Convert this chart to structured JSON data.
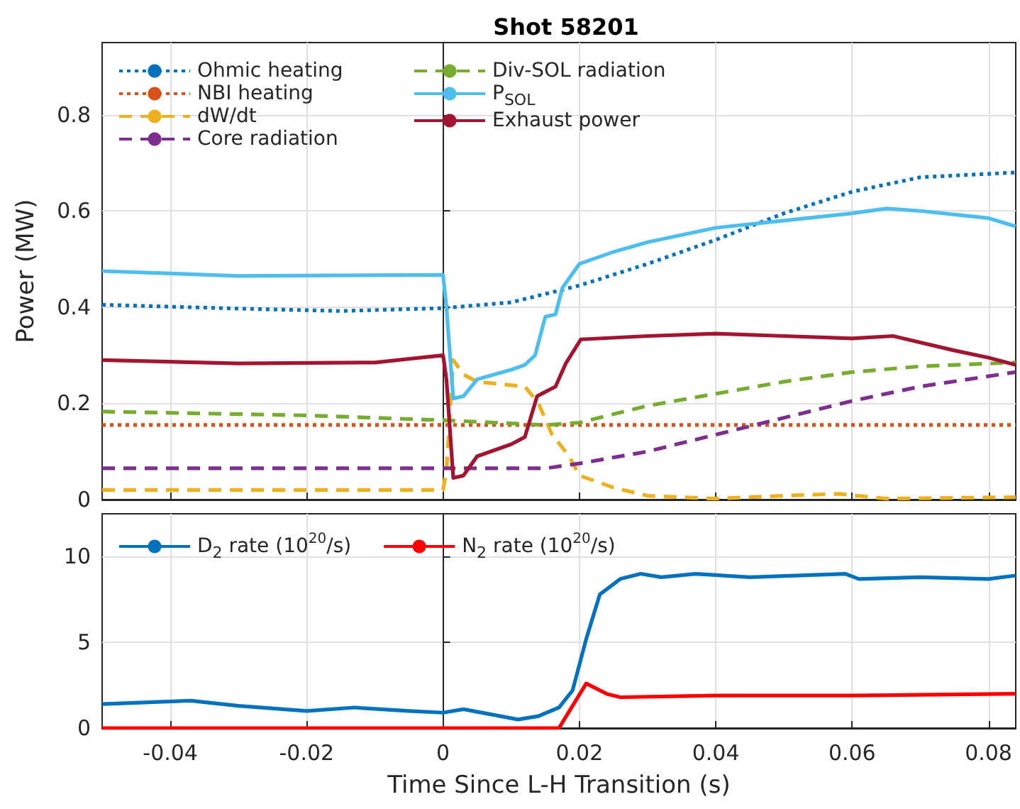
{
  "chart_data": [
    {
      "type": "line",
      "title": "Shot 58201",
      "ylabel": "Power (MW)",
      "xlim": [
        -0.05,
        0.084
      ],
      "xticks": [
        -0.04,
        -0.02,
        0,
        0.02,
        0.04,
        0.06,
        0.08
      ],
      "ylim": [
        0,
        0.95
      ],
      "yticks": [
        0,
        0.2,
        0.4,
        0.6,
        0.8
      ],
      "tick_labels": "y",
      "grid": true,
      "legend": "top left",
      "series": [
        {
          "name": "Ohmic heating",
          "color": "#0072bd",
          "line_style": "dotted",
          "x": [
            -0.05,
            -0.03,
            -0.015,
            0,
            0.01,
            0.02,
            0.03,
            0.04,
            0.05,
            0.06,
            0.07,
            0.084
          ],
          "values": [
            0.405,
            0.397,
            0.392,
            0.398,
            0.41,
            0.445,
            0.49,
            0.54,
            0.595,
            0.64,
            0.67,
            0.68
          ]
        },
        {
          "name": "NBI heating",
          "color": "#d95319",
          "line_style": "dotted",
          "x": [
            -0.05,
            0.084
          ],
          "values": [
            0.155,
            0.155
          ]
        },
        {
          "name": "dW/dt",
          "color": "#edb120",
          "line_style": "dashed",
          "x": [
            -0.05,
            0,
            0.0005,
            0.0015,
            0.003,
            0.005,
            0.012,
            0.014,
            0.016,
            0.0185,
            0.02,
            0.025,
            0.03,
            0.04,
            0.05,
            0.058,
            0.065,
            0.084
          ],
          "values": [
            0.02,
            0.02,
            0.06,
            0.29,
            0.26,
            0.245,
            0.235,
            0.2,
            0.135,
            0.09,
            0.05,
            0.025,
            0.008,
            0.002,
            0.008,
            0.012,
            0.002,
            0.005
          ]
        },
        {
          "name": "Core radiation",
          "color": "#7e2f8e",
          "line_style": "dashed",
          "x": [
            -0.05,
            0.015,
            0.02,
            0.03,
            0.04,
            0.05,
            0.06,
            0.07,
            0.084
          ],
          "values": [
            0.065,
            0.065,
            0.075,
            0.1,
            0.135,
            0.17,
            0.205,
            0.235,
            0.265
          ]
        },
        {
          "name": "Div-SOL radiation",
          "color": "#77ac30",
          "line_style": "dashed",
          "x": [
            -0.05,
            -0.02,
            0,
            0.015,
            0.02,
            0.03,
            0.04,
            0.05,
            0.06,
            0.07,
            0.084
          ],
          "values": [
            0.183,
            0.175,
            0.165,
            0.155,
            0.16,
            0.195,
            0.22,
            0.245,
            0.265,
            0.277,
            0.285
          ]
        },
        {
          "name": "P$_{SOL}$",
          "color": "#4dbeee",
          "line_style": "solid",
          "x": [
            -0.05,
            -0.03,
            0,
            0.0005,
            0.0015,
            0.003,
            0.005,
            0.01,
            0.012,
            0.0135,
            0.015,
            0.0165,
            0.0175,
            0.02,
            0.025,
            0.03,
            0.04,
            0.05,
            0.06,
            0.065,
            0.07,
            0.08,
            0.084
          ],
          "values": [
            0.475,
            0.465,
            0.467,
            0.4,
            0.21,
            0.215,
            0.25,
            0.27,
            0.28,
            0.3,
            0.38,
            0.385,
            0.44,
            0.49,
            0.515,
            0.535,
            0.565,
            0.58,
            0.595,
            0.605,
            0.6,
            0.585,
            0.568
          ]
        },
        {
          "name": "Exhaust power",
          "color": "#a2142f",
          "line_style": "solid",
          "x": [
            -0.05,
            -0.03,
            -0.01,
            0,
            0.0005,
            0.0015,
            0.003,
            0.005,
            0.01,
            0.012,
            0.0138,
            0.0165,
            0.018,
            0.0202,
            0.03,
            0.04,
            0.05,
            0.06,
            0.066,
            0.075,
            0.08,
            0.084
          ],
          "values": [
            0.29,
            0.283,
            0.285,
            0.3,
            0.25,
            0.045,
            0.05,
            0.09,
            0.115,
            0.13,
            0.215,
            0.235,
            0.283,
            0.333,
            0.34,
            0.345,
            0.34,
            0.335,
            0.34,
            0.31,
            0.295,
            0.28
          ]
        }
      ]
    },
    {
      "type": "line",
      "xlabel": "Time Since L-H Transition (s)",
      "xlim": [
        -0.05,
        0.084
      ],
      "xticks": [
        -0.04,
        -0.02,
        0,
        0.02,
        0.04,
        0.06,
        0.08
      ],
      "ylim": [
        0,
        12.5
      ],
      "yticks": [
        0,
        5,
        10
      ],
      "grid": true,
      "legend": "top left",
      "series": [
        {
          "name": "D$_{2}$ rate (10$^{20}$/s)",
          "color": "#0072bd",
          "line_style": "solid",
          "x": [
            -0.05,
            -0.037,
            -0.03,
            -0.02,
            -0.013,
            -0.005,
            0,
            0.003,
            0.007,
            0.011,
            0.014,
            0.017,
            0.019,
            0.021,
            0.023,
            0.026,
            0.029,
            0.032,
            0.037,
            0.045,
            0.059,
            0.061,
            0.07,
            0.08,
            0.084
          ],
          "values": [
            1.4,
            1.6,
            1.3,
            1.0,
            1.2,
            1.0,
            0.9,
            1.1,
            0.8,
            0.5,
            0.7,
            1.2,
            2.2,
            5.2,
            7.8,
            8.7,
            9.0,
            8.8,
            9.0,
            8.8,
            9.0,
            8.7,
            8.8,
            8.7,
            8.9
          ]
        },
        {
          "name": "N$_{2}$ rate (10$^{20}$/s)",
          "color": "#ff0000",
          "line_style": "solid",
          "x": [
            -0.05,
            0.017,
            0.021,
            0.024,
            0.026,
            0.04,
            0.06,
            0.084
          ],
          "values": [
            0,
            0,
            2.6,
            2.0,
            1.8,
            1.9,
            1.9,
            2.0
          ]
        }
      ]
    }
  ]
}
